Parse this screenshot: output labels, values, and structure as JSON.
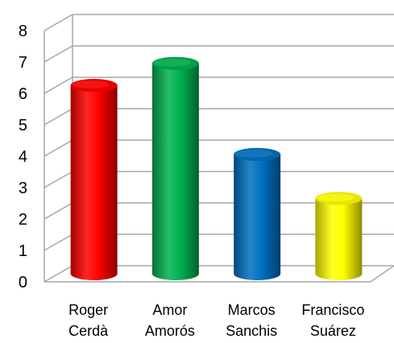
{
  "chart_data": {
    "type": "bar",
    "style": "3d-cylinder",
    "categories": [
      [
        "Roger",
        "Cerdà"
      ],
      [
        "Amor",
        "Amorós"
      ],
      [
        "Marcos",
        "Sanchis"
      ],
      [
        "Francisco",
        "Suárez"
      ]
    ],
    "values": [
      6.0,
      6.7,
      3.8,
      2.4
    ],
    "colors": [
      "#ff0000",
      "#00b050",
      "#0070c0",
      "#ffff00"
    ],
    "ylim": [
      0,
      8
    ],
    "yticks": [
      "0",
      "1",
      "2",
      "3",
      "4",
      "5",
      "6",
      "7",
      "8"
    ],
    "grid": true,
    "legend": "none",
    "title": "",
    "xlabel": "",
    "ylabel": ""
  }
}
